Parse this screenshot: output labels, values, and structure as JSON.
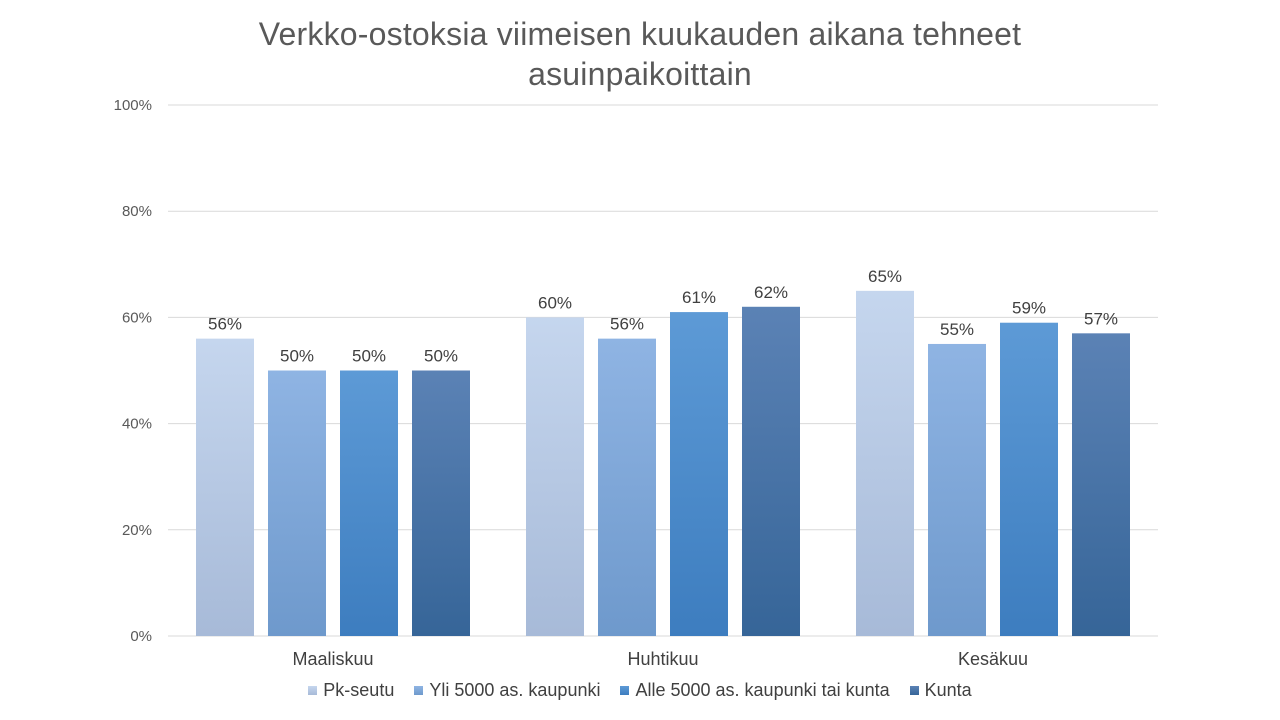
{
  "chart_data": {
    "type": "bar",
    "title_lines": [
      "Verkko-ostoksia viimeisen kuukauden aikana tehneet",
      "asuinpaikoittain"
    ],
    "xlabel": "",
    "ylabel": "",
    "categories": [
      "Maaliskuu",
      "Huhtikuu",
      "Kesäkuu"
    ],
    "series": [
      {
        "name": "Pk-seutu",
        "values": [
          56,
          60,
          65
        ],
        "labels": [
          "56%",
          "60%",
          "65%"
        ],
        "color_top": "#c5d6ee",
        "color_bottom": "#a7bad8"
      },
      {
        "name": "Yli 5000 as. kaupunki",
        "values": [
          50,
          56,
          55
        ],
        "labels": [
          "50%",
          "56%",
          "55%"
        ],
        "color_top": "#8fb4e3",
        "color_bottom": "#6e99cc"
      },
      {
        "name": "Alle 5000 as. kaupunki tai kunta",
        "values": [
          50,
          61,
          59
        ],
        "labels": [
          "50%",
          "61%",
          "59%"
        ],
        "color_top": "#5d9ad6",
        "color_bottom": "#3d7dbf"
      },
      {
        "name": "Kunta",
        "values": [
          50,
          62,
          57
        ],
        "labels": [
          "50%",
          "62%",
          "57%"
        ],
        "color_top": "#5b82b5",
        "color_bottom": "#366598"
      }
    ],
    "ylim": [
      0,
      100
    ],
    "yticks": [
      0,
      20,
      40,
      60,
      80,
      100
    ],
    "ytick_labels": [
      "0%",
      "20%",
      "40%",
      "60%",
      "80%",
      "100%"
    ],
    "grid": true,
    "legend_position": "bottom"
  }
}
